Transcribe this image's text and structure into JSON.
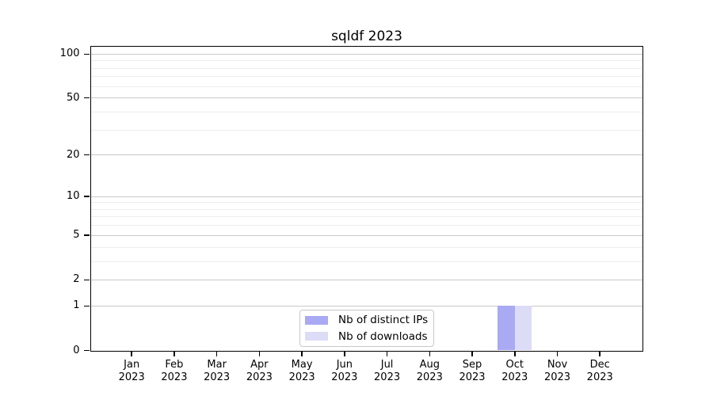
{
  "chart_data": {
    "type": "bar",
    "title": "sqldf 2023",
    "x": {
      "months": [
        "Jan",
        "Feb",
        "Mar",
        "Apr",
        "May",
        "Jun",
        "Jul",
        "Aug",
        "Sep",
        "Oct",
        "Nov",
        "Dec"
      ],
      "year": "2023"
    },
    "series": [
      {
        "name": "Nb of distinct IPs",
        "color": "#a9a9f4",
        "values": [
          0,
          0,
          0,
          0,
          0,
          0,
          0,
          0,
          0,
          1,
          0,
          0
        ]
      },
      {
        "name": "Nb of downloads",
        "color": "#dcdcf6",
        "values": [
          0,
          0,
          0,
          0,
          0,
          0,
          0,
          0,
          0,
          1,
          0,
          0
        ]
      }
    ],
    "yscale": "log1p",
    "ylim": [
      0,
      113
    ],
    "y_major_ticks": [
      0,
      1,
      2,
      5,
      10,
      20,
      50,
      100
    ],
    "y_minor_gridlines": [
      3,
      4,
      6,
      7,
      8,
      9,
      30,
      40,
      60,
      70,
      80,
      90
    ],
    "grid": "horizontal",
    "legend_position": "lower center",
    "colors": {
      "axis": "#000000",
      "major_grid": "#c9c9c9",
      "minor_grid": "#ededed",
      "background": "#ffffff"
    }
  }
}
